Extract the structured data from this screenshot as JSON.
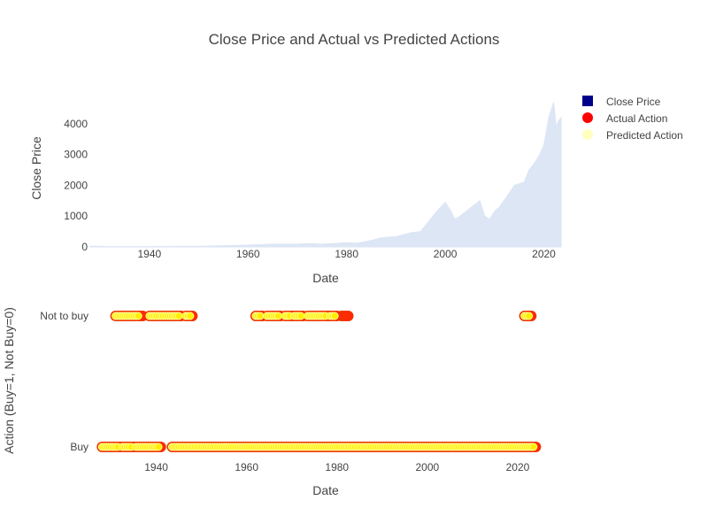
{
  "colors": {
    "close_price_marker": "#00008b",
    "close_price_fill": "#dde6f5",
    "actual_action": "#ff2a00",
    "predicted_action": "#ffff99",
    "predicted_action_core": "#ffee00"
  },
  "chart_data": {
    "type": "area",
    "title": "Close Price and Actual vs Predicted Actions",
    "legend": {
      "placement": "top-right",
      "entries": [
        {
          "name": "Close Price",
          "marker": "square"
        },
        {
          "name": "Actual Action",
          "marker": "circle"
        },
        {
          "name": "Predicted Action",
          "marker": "circle"
        }
      ]
    },
    "panels": [
      {
        "id": "price",
        "type": "area",
        "xlabel": "Date",
        "ylabel": "Close Price",
        "xlim": [
          1928,
          2023.5
        ],
        "ylim": [
          0,
          4800
        ],
        "xticks": [
          "1940",
          "1960",
          "1980",
          "2000",
          "2020"
        ],
        "yticks": [
          "0",
          "1000",
          "2000",
          "3000",
          "4000"
        ],
        "grid": false,
        "series": [
          {
            "name": "Close Price",
            "x": [
              1928,
              1930,
              1932,
              1935,
              1940,
              1945,
              1950,
              1955,
              1960,
              1965,
              1970,
              1973,
              1975,
              1980,
              1982,
              1985,
              1987,
              1990,
              1993,
              1995,
              1997,
              1998,
              2000,
              2001,
              2002,
              2003,
              2005,
              2007,
              2008,
              2009,
              2010,
              2011,
              2013,
              2014,
              2015,
              2016,
              2017,
              2018,
              2019,
              2020,
              2021,
              2022,
              2022.5,
              2023,
              2023.5
            ],
            "y": [
              25,
              20,
              8,
              12,
              11,
              17,
              20,
              40,
              58,
              90,
              92,
              110,
              90,
              135,
              120,
              210,
              300,
              330,
              460,
              500,
              900,
              1100,
              1450,
              1200,
              900,
              1000,
              1250,
              1500,
              1000,
              900,
              1150,
              1300,
              1750,
              2000,
              2050,
              2100,
              2500,
              2700,
              2950,
              3300,
              4200,
              4700,
              3900,
              4100,
              4200
            ]
          }
        ]
      },
      {
        "id": "action",
        "type": "scatter",
        "xlabel": "Date",
        "ylabel": "Action (Buy=1, Not Buy=0)",
        "xlim": [
          1925,
          2030
        ],
        "xticks": [
          "1940",
          "1960",
          "1980",
          "2000",
          "2020"
        ],
        "yticks": [
          "Not to buy",
          "Buy"
        ],
        "grid": false,
        "series": [
          {
            "name": "Actual Action",
            "not_to_buy_ranges": [
              [
                1931,
                1937
              ],
              [
                1938.5,
                1945.5
              ],
              [
                1946.5,
                1948
              ],
              [
                1962,
                1963.5
              ],
              [
                1964.5,
                1967.5
              ],
              [
                1968.5,
                1970
              ],
              [
                1970.5,
                1972.5
              ],
              [
                1973.5,
                1978
              ],
              [
                1978.5,
                1980
              ],
              [
                1981,
                1982.5
              ],
              [
                2021.5,
                2023
              ]
            ],
            "buy_ranges": [
              [
                1928,
                1932
              ],
              [
                1932.5,
                1935
              ],
              [
                1935.5,
                1941
              ],
              [
                1943.5,
                2024
              ]
            ]
          },
          {
            "name": "Predicted Action",
            "not_to_buy_ranges": [
              [
                1931,
                1936
              ],
              [
                1938.5,
                1945
              ],
              [
                1946.5,
                1947.5
              ],
              [
                1962,
                1963
              ],
              [
                1964.5,
                1967
              ],
              [
                1968.5,
                1969.5
              ],
              [
                1970.5,
                1972
              ],
              [
                1973.5,
                1977.5
              ],
              [
                1978.5,
                1979.5
              ],
              [
                2021.5,
                2022.5
              ]
            ],
            "buy_ranges": [
              [
                1928,
                1931.5
              ],
              [
                1932.5,
                1934.5
              ],
              [
                1935.5,
                1940.5
              ],
              [
                1943.5,
                2023.5
              ]
            ]
          }
        ]
      }
    ]
  }
}
